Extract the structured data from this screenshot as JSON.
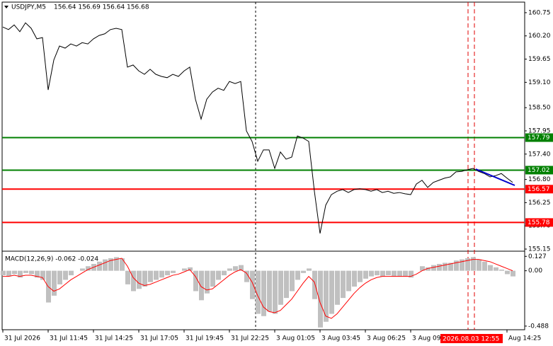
{
  "chart_data": [
    {
      "type": "line",
      "title": "USDJPY,M5",
      "subtitle": "156.64 156.69 156.64 156.68",
      "cursor_label": "2026.08.03 12:55",
      "categories": [
        "31 Jul 2026",
        null,
        null,
        null,
        null,
        null,
        null,
        null,
        "31 Jul 11:45",
        null,
        null,
        null,
        null,
        null,
        null,
        null,
        "31 Jul 14:25",
        null,
        null,
        null,
        null,
        null,
        null,
        null,
        "31 Jul 17:05",
        null,
        null,
        null,
        null,
        null,
        null,
        null,
        "31 Jul 19:45",
        null,
        null,
        null,
        null,
        null,
        null,
        null,
        "31 Jul 22:25",
        null,
        null,
        null,
        null,
        null,
        null,
        null,
        "3 Aug 01:05",
        null,
        null,
        null,
        null,
        null,
        null,
        null,
        "3 Aug 03:45",
        null,
        null,
        null,
        null,
        null,
        null,
        null,
        "3 Aug 06:25",
        null,
        null,
        null,
        null,
        null,
        null,
        null,
        "3 Aug 09:",
        null,
        null,
        null,
        null,
        null,
        null,
        null,
        null,
        null,
        null,
        null,
        null,
        null,
        null,
        null,
        null,
        "Aug 14:25",
        null
      ],
      "series": [
        {
          "color": "#000000",
          "values": [
            160.41,
            160.35,
            160.46,
            160.3,
            160.51,
            160.38,
            160.13,
            160.16,
            158.92,
            159.63,
            159.96,
            159.91,
            160.01,
            159.96,
            160.04,
            160.01,
            160.13,
            160.21,
            160.25,
            160.35,
            160.38,
            160.35,
            159.46,
            159.51,
            159.37,
            159.29,
            159.41,
            159.29,
            159.24,
            159.21,
            159.29,
            159.24,
            159.37,
            159.46,
            158.7,
            158.23,
            158.7,
            158.87,
            158.96,
            158.91,
            159.12,
            159.07,
            159.12,
            157.95,
            157.7,
            157.23,
            157.5,
            157.5,
            157.06,
            157.45,
            157.28,
            157.33,
            157.83,
            157.78,
            157.7,
            156.52,
            155.52,
            156.19,
            156.44,
            156.52,
            156.56,
            156.49,
            156.56,
            156.58,
            156.56,
            156.52,
            156.56,
            156.49,
            156.52,
            156.47,
            156.49,
            156.46,
            156.44,
            156.69,
            156.78,
            156.61,
            156.73,
            156.78,
            156.83,
            156.86,
            156.98,
            156.99,
            157.03,
            157.06,
            156.99,
            156.94,
            156.86,
            156.89,
            156.94,
            156.83,
            156.73
          ]
        }
      ],
      "levels": [
        {
          "value": 157.79,
          "color": "#008000"
        },
        {
          "value": 157.02,
          "color": "#008000"
        },
        {
          "value": 156.57,
          "color": "#ff0000"
        },
        {
          "value": 155.78,
          "color": "#ff0000"
        }
      ],
      "ylim": [
        155.1,
        161.0
      ],
      "yticks": [
        160.75,
        {
          "value": 160.2,
          "label": "160.20"
        },
        159.65,
        {
          "value": 159.1,
          "label": "159.10"
        },
        {
          "value": 158.5,
          "label": "158.50"
        },
        157.95,
        {
          "value": 157.4,
          "label": "157.40"
        },
        {
          "value": 156.8,
          "label": "156.80"
        },
        156.25,
        {
          "value": 155.7,
          "label": "155.70"
        },
        155.15
      ]
    },
    {
      "type": "macd",
      "title": "MACD(12,26,9) -0.062 -0.024",
      "series": [
        {
          "color": "#c0c0c0",
          "values": [
            -0.04,
            -0.05,
            -0.03,
            -0.06,
            -0.02,
            -0.03,
            -0.06,
            -0.08,
            -0.28,
            -0.22,
            -0.12,
            -0.08,
            -0.04,
            0.0,
            0.02,
            0.04,
            0.06,
            0.08,
            0.1,
            0.11,
            0.12,
            0.11,
            -0.12,
            -0.18,
            -0.16,
            -0.14,
            -0.1,
            -0.08,
            -0.06,
            -0.04,
            -0.02,
            0.0,
            0.02,
            0.03,
            -0.18,
            -0.26,
            -0.2,
            -0.14,
            -0.08,
            -0.04,
            0.02,
            0.04,
            0.05,
            -0.1,
            -0.25,
            -0.38,
            -0.4,
            -0.36,
            -0.38,
            -0.3,
            -0.24,
            -0.18,
            -0.08,
            -0.02,
            0.02,
            -0.25,
            -0.5,
            -0.45,
            -0.38,
            -0.3,
            -0.24,
            -0.18,
            -0.14,
            -0.1,
            -0.07,
            -0.05,
            -0.04,
            -0.05,
            -0.04,
            -0.05,
            -0.05,
            -0.05,
            -0.06,
            0.0,
            0.04,
            0.03,
            0.05,
            0.06,
            0.07,
            0.07,
            0.09,
            0.1,
            0.11,
            0.12,
            0.1,
            0.08,
            0.05,
            0.03,
            0.01,
            -0.03,
            -0.05
          ]
        },
        {
          "color": "#ff0000",
          "values": [
            -0.05,
            -0.05,
            -0.04,
            -0.05,
            -0.04,
            -0.04,
            -0.05,
            -0.06,
            -0.14,
            -0.18,
            -0.16,
            -0.12,
            -0.08,
            -0.05,
            -0.02,
            0.01,
            0.03,
            0.05,
            0.07,
            0.09,
            0.1,
            0.11,
            0.04,
            -0.06,
            -0.11,
            -0.13,
            -0.12,
            -0.1,
            -0.08,
            -0.06,
            -0.04,
            -0.03,
            -0.01,
            0.01,
            -0.05,
            -0.14,
            -0.17,
            -0.16,
            -0.12,
            -0.08,
            -0.04,
            -0.01,
            0.01,
            -0.02,
            -0.1,
            -0.22,
            -0.32,
            -0.36,
            -0.37,
            -0.35,
            -0.3,
            -0.25,
            -0.18,
            -0.11,
            -0.05,
            -0.1,
            -0.28,
            -0.4,
            -0.42,
            -0.38,
            -0.32,
            -0.26,
            -0.2,
            -0.15,
            -0.11,
            -0.08,
            -0.06,
            -0.05,
            -0.05,
            -0.05,
            -0.05,
            -0.05,
            -0.05,
            -0.03,
            0.0,
            0.02,
            0.03,
            0.04,
            0.05,
            0.06,
            0.07,
            0.08,
            0.09,
            0.1,
            0.1,
            0.09,
            0.08,
            0.06,
            0.04,
            0.02,
            0.0
          ]
        }
      ],
      "ylim": [
        -0.52,
        0.16
      ],
      "yticks": [
        0.127,
        {
          "value": 0,
          "label": "0.00"
        },
        -0.488
      ]
    }
  ]
}
